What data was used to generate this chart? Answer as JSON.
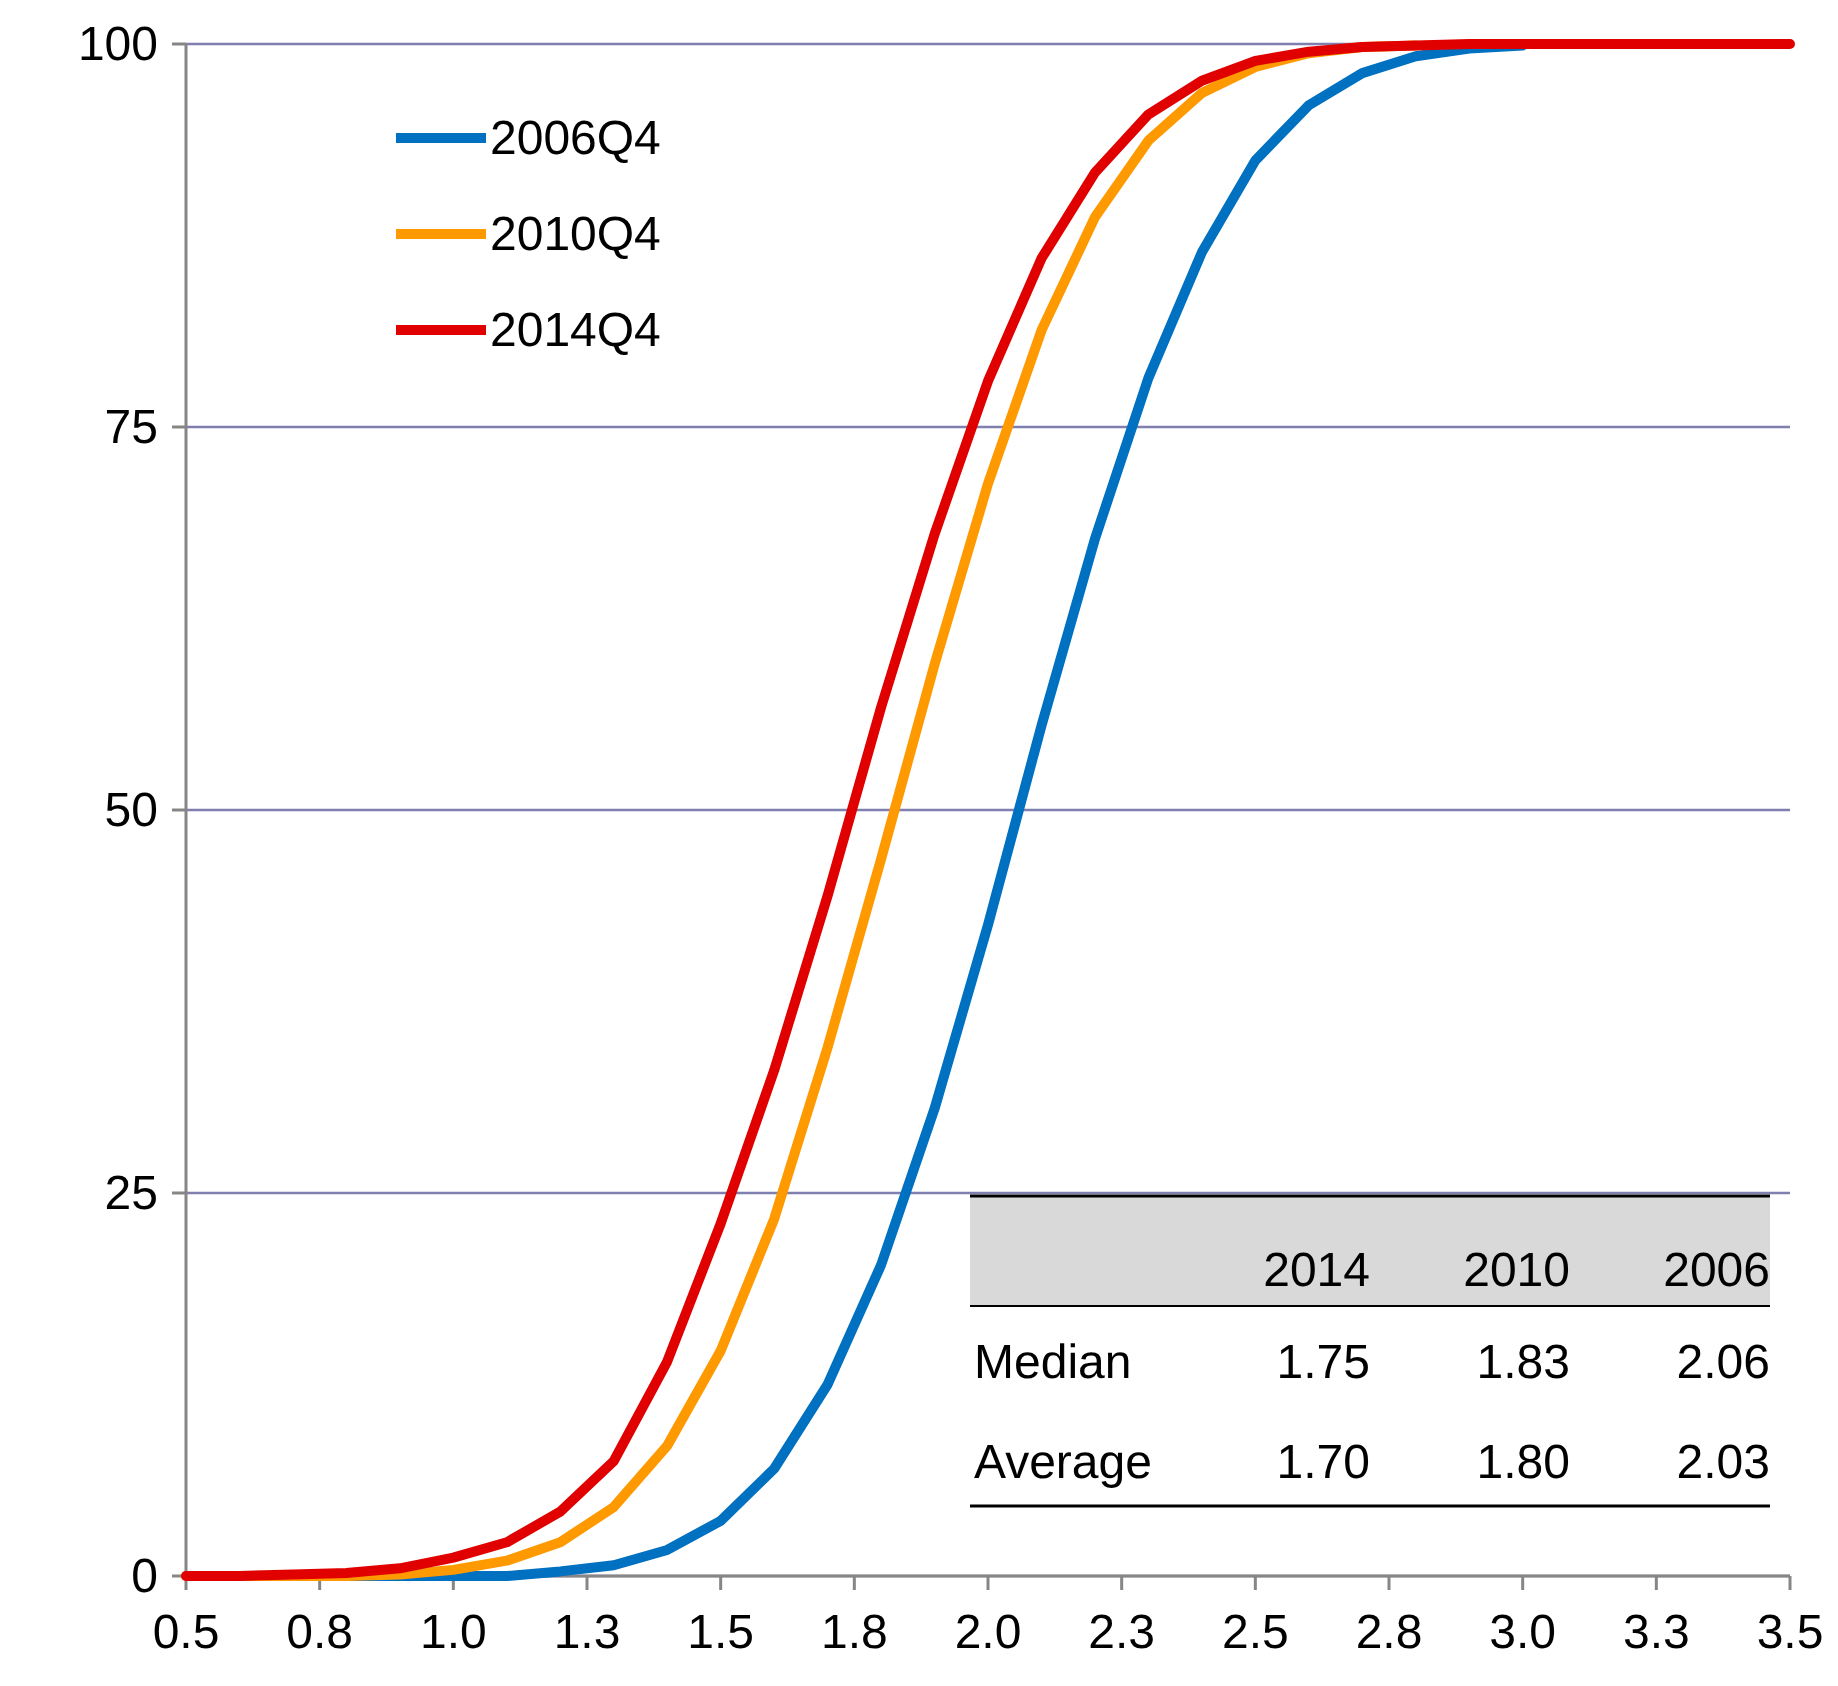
{
  "chart_data": {
    "type": "line",
    "x": [
      0.5,
      0.6,
      0.7,
      0.8,
      0.9,
      1.0,
      1.1,
      1.2,
      1.3,
      1.4,
      1.5,
      1.6,
      1.7,
      1.8,
      1.9,
      2.0,
      2.1,
      2.2,
      2.3,
      2.4,
      2.5,
      2.6,
      2.7,
      2.8,
      2.9,
      3.0,
      3.1,
      3.2,
      3.3,
      3.4,
      3.5
    ],
    "series": [
      {
        "name": "2006Q4",
        "color": "#0070c0",
        "values": [
          null,
          null,
          0,
          0,
          0,
          0,
          0,
          0.3,
          0.7,
          1.7,
          3.6,
          7,
          12.5,
          20.3,
          30.5,
          42.5,
          55.5,
          67.7,
          78.2,
          86.4,
          92.4,
          96,
          98.1,
          99.2,
          99.7,
          99.9,
          null,
          null,
          null,
          null,
          null
        ]
      },
      {
        "name": "2010Q4",
        "color": "#ff9900",
        "values": [
          0,
          0,
          0,
          0,
          0.1,
          0.4,
          1.0,
          2.2,
          4.5,
          8.5,
          14.7,
          23.3,
          34.5,
          46.8,
          59.5,
          71.3,
          81.3,
          88.7,
          93.7,
          96.8,
          98.5,
          99.4,
          99.8,
          99.9,
          null,
          null,
          null,
          null,
          null,
          null,
          null
        ]
      },
      {
        "name": "2014Q4",
        "color": "#e00000",
        "values": [
          0,
          0,
          0.1,
          0.2,
          0.5,
          1.2,
          2.2,
          4.2,
          7.5,
          14,
          23,
          33,
          44.4,
          56.7,
          68,
          78,
          86,
          91.6,
          95.4,
          97.6,
          98.9,
          99.5,
          99.8,
          99.9,
          100,
          100,
          100,
          100,
          100,
          100,
          100
        ]
      }
    ],
    "xlim": [
      0.5,
      3.5
    ],
    "xticks": [
      0.5,
      {
        "value": 0.75,
        "label": "0.8"
      },
      {
        "value": 1,
        "label": "1.0"
      },
      {
        "value": 1.25,
        "label": "1.3"
      },
      1.5,
      {
        "value": 1.75,
        "label": "1.8"
      },
      {
        "value": 2,
        "label": "2.0"
      },
      {
        "value": 2.25,
        "label": "2.3"
      },
      2.5,
      {
        "value": 2.75,
        "label": "2.8"
      },
      {
        "value": 3,
        "label": "3.0"
      },
      {
        "value": 3.25,
        "label": "3.3"
      },
      3.5
    ],
    "ylim": [
      0,
      100
    ],
    "yticks": [
      0,
      25,
      50,
      75,
      100
    ],
    "grid": "y",
    "legend": "top left",
    "marker": "none",
    "line_style": "solid",
    "annotations": [
      "2014",
      "2010",
      "2006",
      "Median",
      "1.75",
      "1.83",
      "2.06",
      "Average",
      "1.70",
      "1.80",
      "2.03"
    ]
  }
}
